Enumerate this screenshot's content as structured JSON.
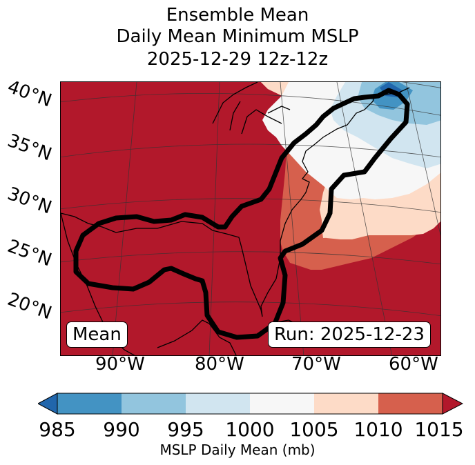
{
  "title": {
    "line1": "Ensemble Mean",
    "line2": "Daily Mean Minimum MSLP",
    "line3": "2025-12-29 12z-12z"
  },
  "map": {
    "lat_labels": [
      "40°N",
      "35°N",
      "30°N",
      "25°N",
      "20°N"
    ],
    "lon_labels": [
      "90°W",
      "80°W",
      "70°W",
      "60°W"
    ],
    "extent": {
      "lon_min": -97,
      "lon_max": -59,
      "lat_min": 15,
      "lat_max": 41
    },
    "left_box_label": "Mean",
    "right_box_label": "Run: 2025-12-23",
    "highlight_outline_color": "#000000"
  },
  "colorbar": {
    "label": "MSLP Daily Mean (mb)",
    "ticks": [
      "985",
      "990",
      "995",
      "1000",
      "1005",
      "1010",
      "1015"
    ],
    "colors": [
      "#2166ac",
      "#4393c3",
      "#92c5de",
      "#d1e5f0",
      "#f7f7f7",
      "#fddbc7",
      "#d6604d",
      "#b2182b"
    ],
    "extend": "both"
  }
}
